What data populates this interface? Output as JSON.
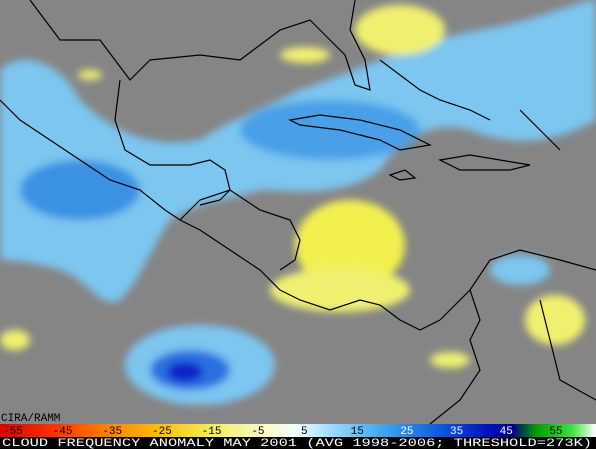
{
  "credit": "CIRA/RAMM",
  "colorbar": {
    "labels": [
      "-55",
      "-45",
      "-35",
      "-25",
      "-15",
      "-5",
      "5",
      "15",
      "25",
      "35",
      "45",
      "55"
    ]
  },
  "caption": "CLOUD FREQUENCY ANOMALY MAY 2001 (AVG 1998-2006; THRESHOLD=273K)"
}
